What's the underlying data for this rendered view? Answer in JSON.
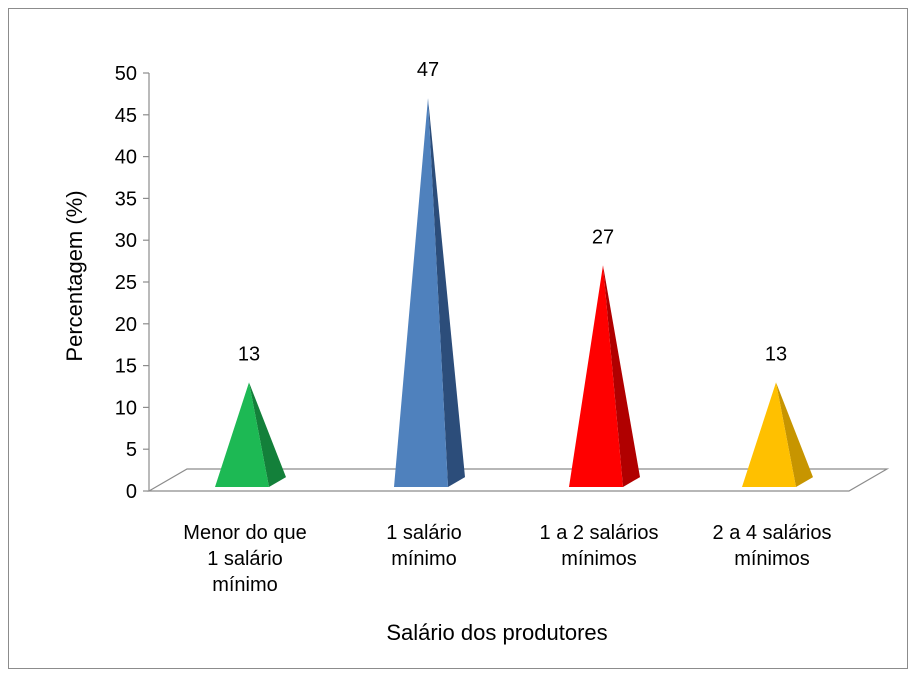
{
  "chart_data": {
    "type": "bar",
    "bar_shape": "pyramid-3d",
    "categories": [
      [
        "Menor do que",
        "1 salário",
        "mínimo"
      ],
      [
        "1 salário",
        "mínimo"
      ],
      [
        "1 a 2 salários",
        "mínimos"
      ],
      [
        "2 a 4 salários",
        "mínimos"
      ]
    ],
    "values": [
      13,
      47,
      27,
      13
    ],
    "data_labels": [
      "13",
      "47",
      "27",
      "13"
    ],
    "colors": [
      "#1db954",
      "#4f81bd",
      "#ff0000",
      "#ffc000"
    ],
    "side_colors": [
      "#13803a",
      "#2c4d7a",
      "#b00000",
      "#c79500"
    ],
    "xlabel": "Salário dos produtores",
    "ylabel": "Percentagem (%)",
    "ylim": [
      0,
      50
    ],
    "yticks": [
      "0",
      "5",
      "10",
      "15",
      "20",
      "25",
      "30",
      "35",
      "40",
      "45",
      "50"
    ],
    "grid": false,
    "legend": "none"
  }
}
